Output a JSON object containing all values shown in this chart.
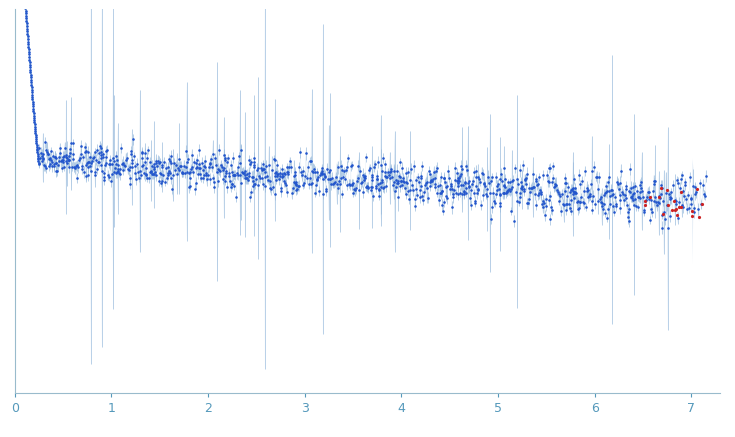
{
  "xlim": [
    0,
    7.3
  ],
  "x_ticks": [
    0,
    1,
    2,
    3,
    4,
    5,
    6,
    7
  ],
  "ylim": [
    -8000,
    22000
  ],
  "background_color": "#ffffff",
  "point_color_main": "#2255cc",
  "point_color_outlier": "#cc2222",
  "error_band_color": "#99bbdd",
  "error_line_color": "#99bbdd",
  "point_size": 3.5,
  "seed": 42,
  "n_points_low": 120,
  "n_points_high": 1100,
  "n_outliers": 18,
  "tick_color": "#5599bb",
  "spine_color": "#99bbcc"
}
